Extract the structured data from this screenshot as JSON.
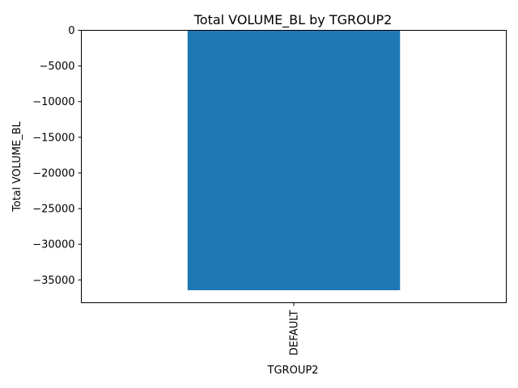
{
  "chart_data": {
    "type": "bar",
    "title": "Total VOLUME_BL by TGROUP2",
    "xlabel": "TGROUP2",
    "ylabel": "Total VOLUME_BL",
    "categories": [
      "DEFAULT"
    ],
    "values": [
      -36450
    ],
    "ylim": [
      -38200,
      0
    ],
    "yticks": [
      0,
      -5000,
      -10000,
      -15000,
      -20000,
      -25000,
      -30000,
      -35000
    ],
    "ytick_labels": [
      "0",
      "−5000",
      "−10000",
      "−15000",
      "−20000",
      "−25000",
      "−30000",
      "−35000"
    ],
    "xtick_rotation": "vertical",
    "grid": false,
    "legend": "none",
    "bar_color": "#1f77b4"
  }
}
